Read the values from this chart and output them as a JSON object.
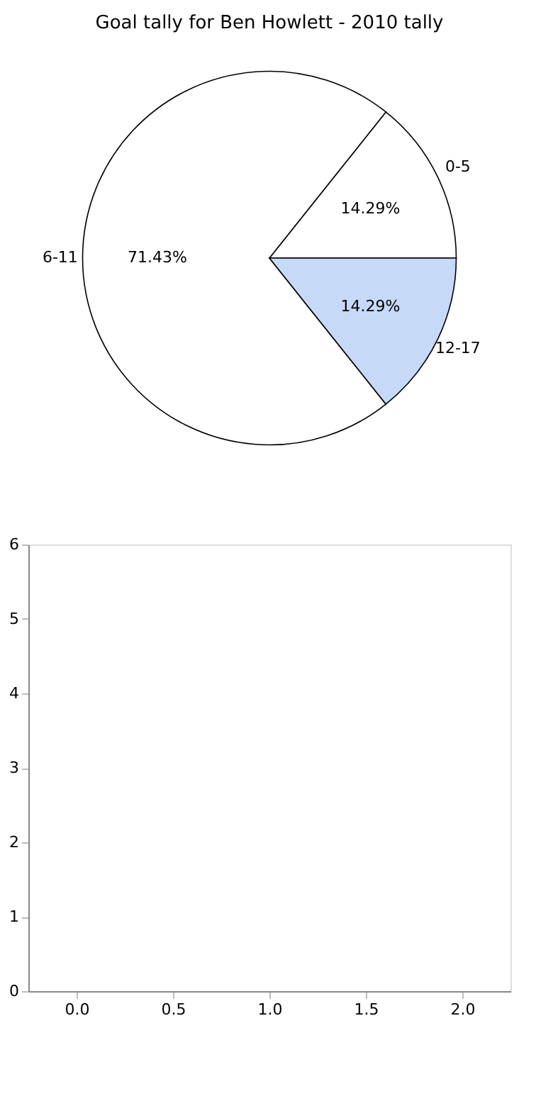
{
  "chart_data": [
    {
      "type": "pie",
      "title": "Goal tally for Ben Howlett - 2010 tally",
      "categories": [
        "0-5",
        "6-11",
        "12-17"
      ],
      "values": [
        14.29,
        71.43,
        14.29
      ],
      "colors": [
        "#ffffff",
        "#ffffff",
        "#c6d9f7"
      ],
      "value_labels": [
        "14.29%",
        "71.43%",
        "14.29%"
      ],
      "legend": false
    },
    {
      "type": "scatter",
      "xlim": [
        -0.25,
        2.25
      ],
      "xticks": [
        {
          "value": 0,
          "label": "0.0"
        },
        {
          "value": 0.5,
          "label": "0.5"
        },
        {
          "value": 1,
          "label": "1.0"
        },
        {
          "value": 1.5,
          "label": "1.5"
        },
        {
          "value": 2,
          "label": "2.0"
        }
      ],
      "ylim": [
        0,
        6
      ],
      "yticks": [
        0,
        1,
        2,
        3,
        4,
        5,
        6
      ],
      "grid": false
    }
  ]
}
